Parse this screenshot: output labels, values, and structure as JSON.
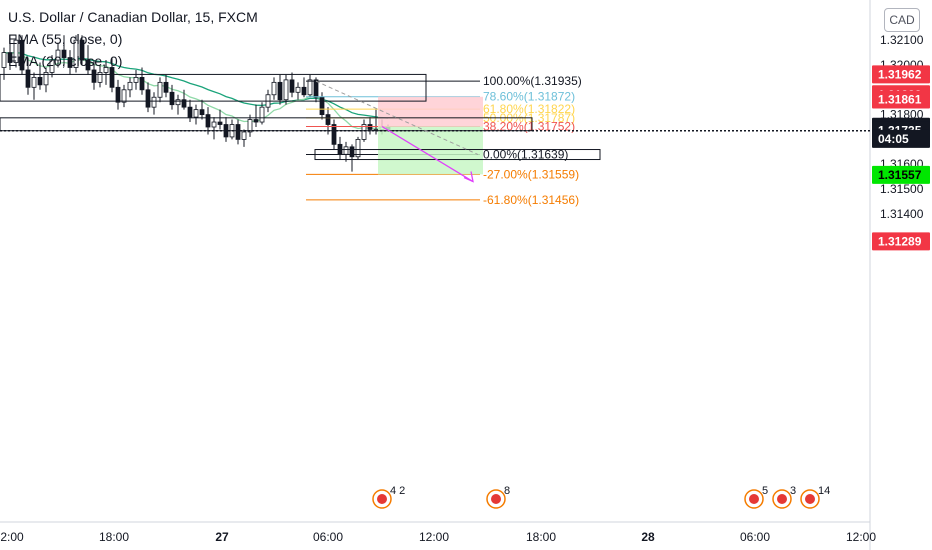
{
  "header": {
    "title": "U.S. Dollar / Canadian Dollar, 15, FXCM",
    "indicators": [
      "EMA (55, close, 0)",
      "EMA (20, close, 0)"
    ],
    "currency_button": "CAD"
  },
  "colors": {
    "up": "#26a69a",
    "down": "#ef5350",
    "ema_fast": "#8fd9a8",
    "ema_slow": "#1aa37a",
    "fib_100": "#131722",
    "fib_786": "#6ec0d9",
    "fib_618": "#ffd54f",
    "fib_50": "#ffd54f",
    "fib_382": "#ef5350",
    "fib_0": "#131722",
    "fib_ext": "#f57c00",
    "short_loss": "#ffcdd2",
    "short_profit": "#c8f7c5",
    "arrow": "#e040fb",
    "trend": "#9e9e9e"
  },
  "chart_data": {
    "type": "candlestick",
    "symbol": "U.S. Dollar / Canadian Dollar",
    "interval": "15",
    "source": "FXCM",
    "ylim": [
      1.3128,
      1.3212
    ],
    "y_ticks": [
      "1.32100",
      "1.32000",
      "1.31900",
      "1.31800",
      "1.31700",
      "1.31600",
      "1.31500",
      "1.31400"
    ],
    "x_ticks": [
      "2:00",
      "18:00",
      "27",
      "06:00",
      "12:00",
      "18:00",
      "28",
      "06:00",
      "12:00"
    ],
    "fib_levels": [
      {
        "label": "100.00%(1.31935)",
        "price": 1.31935,
        "color_key": "fib_100"
      },
      {
        "label": "78.60%(1.31872)",
        "price": 1.31872,
        "color_key": "fib_786"
      },
      {
        "label": "61.80%(1.31822)",
        "price": 1.31822,
        "color_key": "fib_618"
      },
      {
        "label": "50.00%(1.31787)",
        "price": 1.31787,
        "color_key": "fib_50"
      },
      {
        "label": "38.20%(1.31752)",
        "price": 1.31752,
        "color_key": "fib_382"
      },
      {
        "label": "0.00%(1.31639)",
        "price": 1.31639,
        "color_key": "fib_0"
      },
      {
        "label": "-27.00%(1.31559)",
        "price": 1.31559,
        "color_key": "fib_ext"
      },
      {
        "label": "-61.80%(1.31456)",
        "price": 1.31456,
        "color_key": "fib_ext"
      }
    ],
    "price_badges": [
      {
        "label": "1.31962",
        "price": 1.31962,
        "bg": "#f23645",
        "fg": "#ffffff"
      },
      {
        "label": "1.31882",
        "price": 1.31882,
        "bg": "#f23645",
        "fg": "#ffffff"
      },
      {
        "label": "1.31861",
        "price": 1.31861,
        "bg": "#f23645",
        "fg": "#ffffff"
      },
      {
        "label": "1.31751",
        "price": 1.31751,
        "bg": "#131722",
        "fg": "#ffffff"
      },
      {
        "label": "1.31735",
        "price": 1.31735,
        "bg": "#131722",
        "fg": "#ffffff"
      },
      {
        "label": "04:05",
        "price": 1.31702,
        "bg": "#131722",
        "fg": "#ffffff"
      },
      {
        "label": "1.31557",
        "price": 1.31557,
        "bg": "#00e600",
        "fg": "#000000"
      },
      {
        "label": "1.31289",
        "price": 1.31289,
        "bg": "#f23645",
        "fg": "#ffffff"
      }
    ],
    "current_price": 1.31735,
    "ema_slow_color_key": "ema_slow",
    "ema_fast_color_key": "ema_fast",
    "candles": [
      [
        1.3199,
        1.3207,
        1.3194,
        1.3205
      ],
      [
        1.3205,
        1.3211,
        1.3198,
        1.3201
      ],
      [
        1.3201,
        1.3212,
        1.3199,
        1.321
      ],
      [
        1.321,
        1.3212,
        1.3196,
        1.3198
      ],
      [
        1.3198,
        1.3203,
        1.3188,
        1.3191
      ],
      [
        1.3191,
        1.3197,
        1.3186,
        1.3195
      ],
      [
        1.3195,
        1.3201,
        1.319,
        1.3192
      ],
      [
        1.3192,
        1.3199,
        1.3189,
        1.3197
      ],
      [
        1.3197,
        1.3204,
        1.3195,
        1.3202
      ],
      [
        1.3202,
        1.3209,
        1.3199,
        1.3206
      ],
      [
        1.3206,
        1.3212,
        1.32,
        1.3203
      ],
      [
        1.3203,
        1.3206,
        1.3196,
        1.3199
      ],
      [
        1.3199,
        1.3212,
        1.3197,
        1.321
      ],
      [
        1.321,
        1.3212,
        1.32,
        1.3202
      ],
      [
        1.3202,
        1.3208,
        1.3196,
        1.3198
      ],
      [
        1.3198,
        1.3202,
        1.319,
        1.3193
      ],
      [
        1.3193,
        1.32,
        1.3191,
        1.3197
      ],
      [
        1.3197,
        1.3202,
        1.3192,
        1.3199
      ],
      [
        1.3199,
        1.3203,
        1.3189,
        1.3191
      ],
      [
        1.3191,
        1.3194,
        1.3182,
        1.3185
      ],
      [
        1.3185,
        1.3192,
        1.3183,
        1.319
      ],
      [
        1.319,
        1.3195,
        1.3187,
        1.3193
      ],
      [
        1.3193,
        1.3198,
        1.319,
        1.3195
      ],
      [
        1.3195,
        1.3199,
        1.3188,
        1.319
      ],
      [
        1.319,
        1.3193,
        1.3181,
        1.3183
      ],
      [
        1.3183,
        1.3189,
        1.318,
        1.3187
      ],
      [
        1.3187,
        1.3195,
        1.3185,
        1.3193
      ],
      [
        1.3193,
        1.3196,
        1.3187,
        1.3189
      ],
      [
        1.3189,
        1.3192,
        1.3182,
        1.3184
      ],
      [
        1.3184,
        1.3188,
        1.318,
        1.3186
      ],
      [
        1.3186,
        1.319,
        1.3182,
        1.3183
      ],
      [
        1.3183,
        1.3186,
        1.3177,
        1.3179
      ],
      [
        1.3179,
        1.3184,
        1.3176,
        1.3182
      ],
      [
        1.3182,
        1.3186,
        1.3178,
        1.318
      ],
      [
        1.318,
        1.3183,
        1.3172,
        1.3175
      ],
      [
        1.3175,
        1.3179,
        1.317,
        1.3177
      ],
      [
        1.3177,
        1.3182,
        1.3174,
        1.3176
      ],
      [
        1.3176,
        1.3179,
        1.3169,
        1.3171
      ],
      [
        1.3171,
        1.3178,
        1.317,
        1.3176
      ],
      [
        1.3176,
        1.3178,
        1.3168,
        1.317
      ],
      [
        1.317,
        1.3174,
        1.3167,
        1.3173
      ],
      [
        1.3173,
        1.318,
        1.3171,
        1.3178
      ],
      [
        1.3178,
        1.3184,
        1.3175,
        1.3177
      ],
      [
        1.3177,
        1.3185,
        1.3176,
        1.3183
      ],
      [
        1.3183,
        1.319,
        1.3181,
        1.3188
      ],
      [
        1.3188,
        1.3195,
        1.3186,
        1.3193
      ],
      [
        1.3193,
        1.3196,
        1.3184,
        1.3186
      ],
      [
        1.3186,
        1.3196,
        1.3184,
        1.3194
      ],
      [
        1.3194,
        1.3197,
        1.3187,
        1.3189
      ],
      [
        1.3189,
        1.3193,
        1.3186,
        1.3191
      ],
      [
        1.3191,
        1.3195,
        1.3187,
        1.3188
      ],
      [
        1.3188,
        1.3196,
        1.3187,
        1.3194
      ],
      [
        1.3194,
        1.3195,
        1.3185,
        1.3187
      ],
      [
        1.3187,
        1.3189,
        1.3178,
        1.318
      ],
      [
        1.318,
        1.3183,
        1.3172,
        1.3176
      ],
      [
        1.3176,
        1.3178,
        1.3166,
        1.3168
      ],
      [
        1.3168,
        1.3171,
        1.3162,
        1.3164
      ],
      [
        1.3164,
        1.3169,
        1.3161,
        1.3167
      ],
      [
        1.3167,
        1.3168,
        1.3157,
        1.3163
      ],
      [
        1.3163,
        1.3171,
        1.3162,
        1.317
      ],
      [
        1.317,
        1.3178,
        1.3169,
        1.3176
      ],
      [
        1.3176,
        1.3179,
        1.3172,
        1.3174
      ],
      [
        1.3174,
        1.3182,
        1.3172,
        1.3174
      ],
      [
        1.3174,
        1.3178,
        1.3172,
        1.3175
      ],
      [
        1.3175,
        1.3176,
        1.3173,
        1.3174
      ]
    ]
  }
}
